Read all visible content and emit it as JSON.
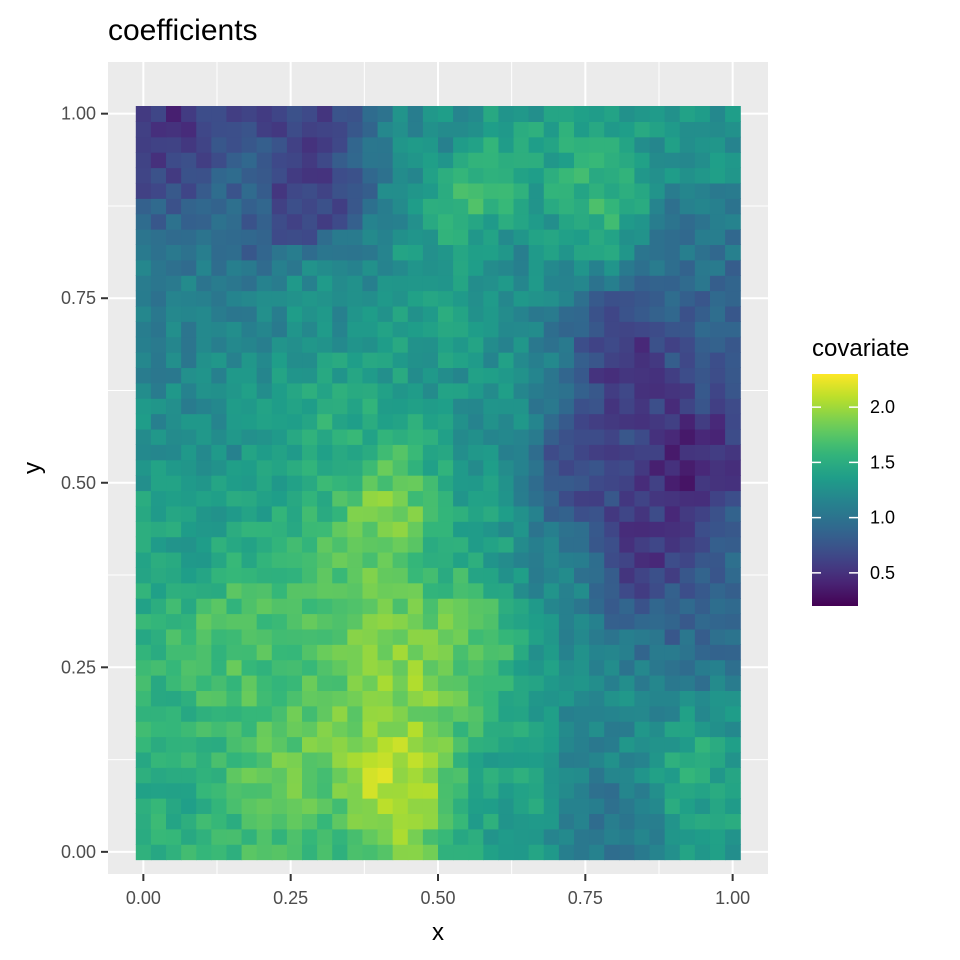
{
  "chart_data": {
    "type": "heatmap",
    "title": "coefficients",
    "xlabel": "x",
    "ylabel": "y",
    "xlim": [
      -0.06,
      1.06
    ],
    "ylim": [
      -0.03,
      1.07
    ],
    "x_ticks": [
      0,
      0.25,
      0.5,
      0.75,
      1
    ],
    "x_tick_labels": [
      "0.00",
      "0.25",
      "0.50",
      "0.75",
      "1.00"
    ],
    "y_ticks": [
      0,
      0.25,
      0.5,
      0.75,
      1
    ],
    "y_tick_labels": [
      "0.00",
      "0.25",
      "0.50",
      "0.75",
      "1.00"
    ],
    "grid": true,
    "colormap": "viridis",
    "grid_cols": 40,
    "grid_rows": 49,
    "cell_width": 0.025641,
    "cell_height": 0.020833,
    "value_range": [
      0.2,
      2.3
    ],
    "field_anchors": [
      {
        "x": 0.05,
        "y": 0.98,
        "v": 0.5
      },
      {
        "x": 0.28,
        "y": 0.98,
        "v": 0.6
      },
      {
        "x": 0.28,
        "y": 0.87,
        "v": 0.5
      },
      {
        "x": 0.15,
        "y": 0.9,
        "v": 0.85
      },
      {
        "x": 0.5,
        "y": 0.97,
        "v": 1.2
      },
      {
        "x": 0.55,
        "y": 0.9,
        "v": 1.7
      },
      {
        "x": 0.78,
        "y": 0.88,
        "v": 1.6
      },
      {
        "x": 0.95,
        "y": 0.97,
        "v": 1.3
      },
      {
        "x": 0.92,
        "y": 0.82,
        "v": 1.0
      },
      {
        "x": 0.05,
        "y": 0.75,
        "v": 1.1
      },
      {
        "x": 0.3,
        "y": 0.78,
        "v": 1.3
      },
      {
        "x": 0.5,
        "y": 0.75,
        "v": 1.4
      },
      {
        "x": 0.62,
        "y": 0.78,
        "v": 1.2
      },
      {
        "x": 0.82,
        "y": 0.67,
        "v": 0.5
      },
      {
        "x": 0.97,
        "y": 0.7,
        "v": 0.8
      },
      {
        "x": 0.92,
        "y": 0.52,
        "v": 0.35
      },
      {
        "x": 0.78,
        "y": 0.52,
        "v": 0.6
      },
      {
        "x": 0.85,
        "y": 0.4,
        "v": 0.5
      },
      {
        "x": 0.72,
        "y": 0.55,
        "v": 0.75
      },
      {
        "x": 0.62,
        "y": 0.62,
        "v": 1.3
      },
      {
        "x": 0.3,
        "y": 0.58,
        "v": 1.5
      },
      {
        "x": 0.1,
        "y": 0.58,
        "v": 1.2
      },
      {
        "x": 0.42,
        "y": 0.45,
        "v": 1.9
      },
      {
        "x": 0.05,
        "y": 0.45,
        "v": 1.4
      },
      {
        "x": 0.55,
        "y": 0.45,
        "v": 1.4
      },
      {
        "x": 0.7,
        "y": 0.35,
        "v": 1.2
      },
      {
        "x": 0.9,
        "y": 0.3,
        "v": 0.9
      },
      {
        "x": 1.0,
        "y": 0.38,
        "v": 0.9
      },
      {
        "x": 0.15,
        "y": 0.28,
        "v": 1.7
      },
      {
        "x": 0.45,
        "y": 0.25,
        "v": 1.95
      },
      {
        "x": 0.55,
        "y": 0.3,
        "v": 1.8
      },
      {
        "x": 0.42,
        "y": 0.1,
        "v": 2.1
      },
      {
        "x": 0.25,
        "y": 0.1,
        "v": 1.8
      },
      {
        "x": 0.05,
        "y": 0.1,
        "v": 1.5
      },
      {
        "x": 0.62,
        "y": 0.08,
        "v": 1.4
      },
      {
        "x": 0.78,
        "y": 0.05,
        "v": 1.0
      },
      {
        "x": 0.92,
        "y": 0.12,
        "v": 1.5
      },
      {
        "x": 0.85,
        "y": 0.2,
        "v": 1.2
      },
      {
        "x": 0.3,
        "y": 0.0,
        "v": 1.6
      },
      {
        "x": 0.0,
        "y": 0.0,
        "v": 1.5
      }
    ],
    "legend": {
      "title": "covariate",
      "placement": "right",
      "range": [
        0.2,
        2.3
      ],
      "ticks": [
        0.5,
        1.0,
        1.5,
        2.0
      ],
      "tick_labels": [
        "0.5",
        "1.0",
        "1.5",
        "2.0"
      ]
    }
  }
}
